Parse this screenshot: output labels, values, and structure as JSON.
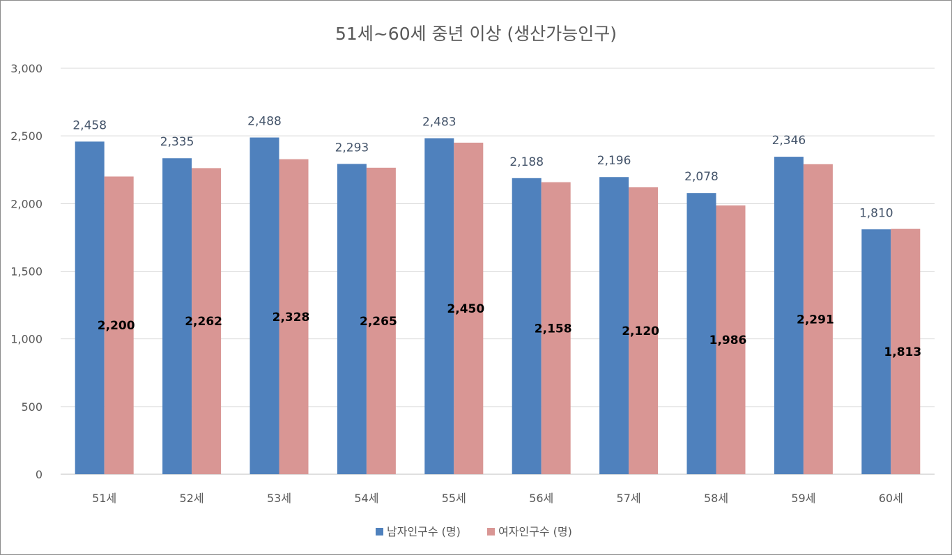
{
  "chart_data": {
    "type": "bar",
    "title": "51세~60세 중년 이상 (생산가능인구)",
    "categories": [
      "51세",
      "52세",
      "53세",
      "54세",
      "55세",
      "56세",
      "57세",
      "58세",
      "59세",
      "60세"
    ],
    "series": [
      {
        "name": "남자인구수 (명)",
        "color": "#4f81bd",
        "values": [
          2458,
          2335,
          2488,
          2293,
          2483,
          2188,
          2196,
          2078,
          2346,
          1810
        ],
        "labels": [
          "2,458",
          "2,335",
          "2,488",
          "2,293",
          "2,483",
          "2,188",
          "2,196",
          "2,078",
          "2,346",
          "1,810"
        ]
      },
      {
        "name": "여자인구수 (명)",
        "color": "#d99694",
        "values": [
          2200,
          2262,
          2328,
          2265,
          2450,
          2158,
          2120,
          1986,
          2291,
          1813
        ],
        "labels": [
          "2,200",
          "2,262",
          "2,328",
          "2,265",
          "2,450",
          "2,158",
          "2,120",
          "1,986",
          "2,291",
          "1,813"
        ]
      }
    ],
    "ylim": [
      0,
      3000
    ],
    "yticks": [
      0,
      500,
      1000,
      1500,
      2000,
      2500,
      3000
    ],
    "ytick_labels": [
      "0",
      "500",
      "1,000",
      "1,500",
      "2,000",
      "2,500",
      "3,000"
    ],
    "grid": true,
    "legend_position": "bottom"
  }
}
